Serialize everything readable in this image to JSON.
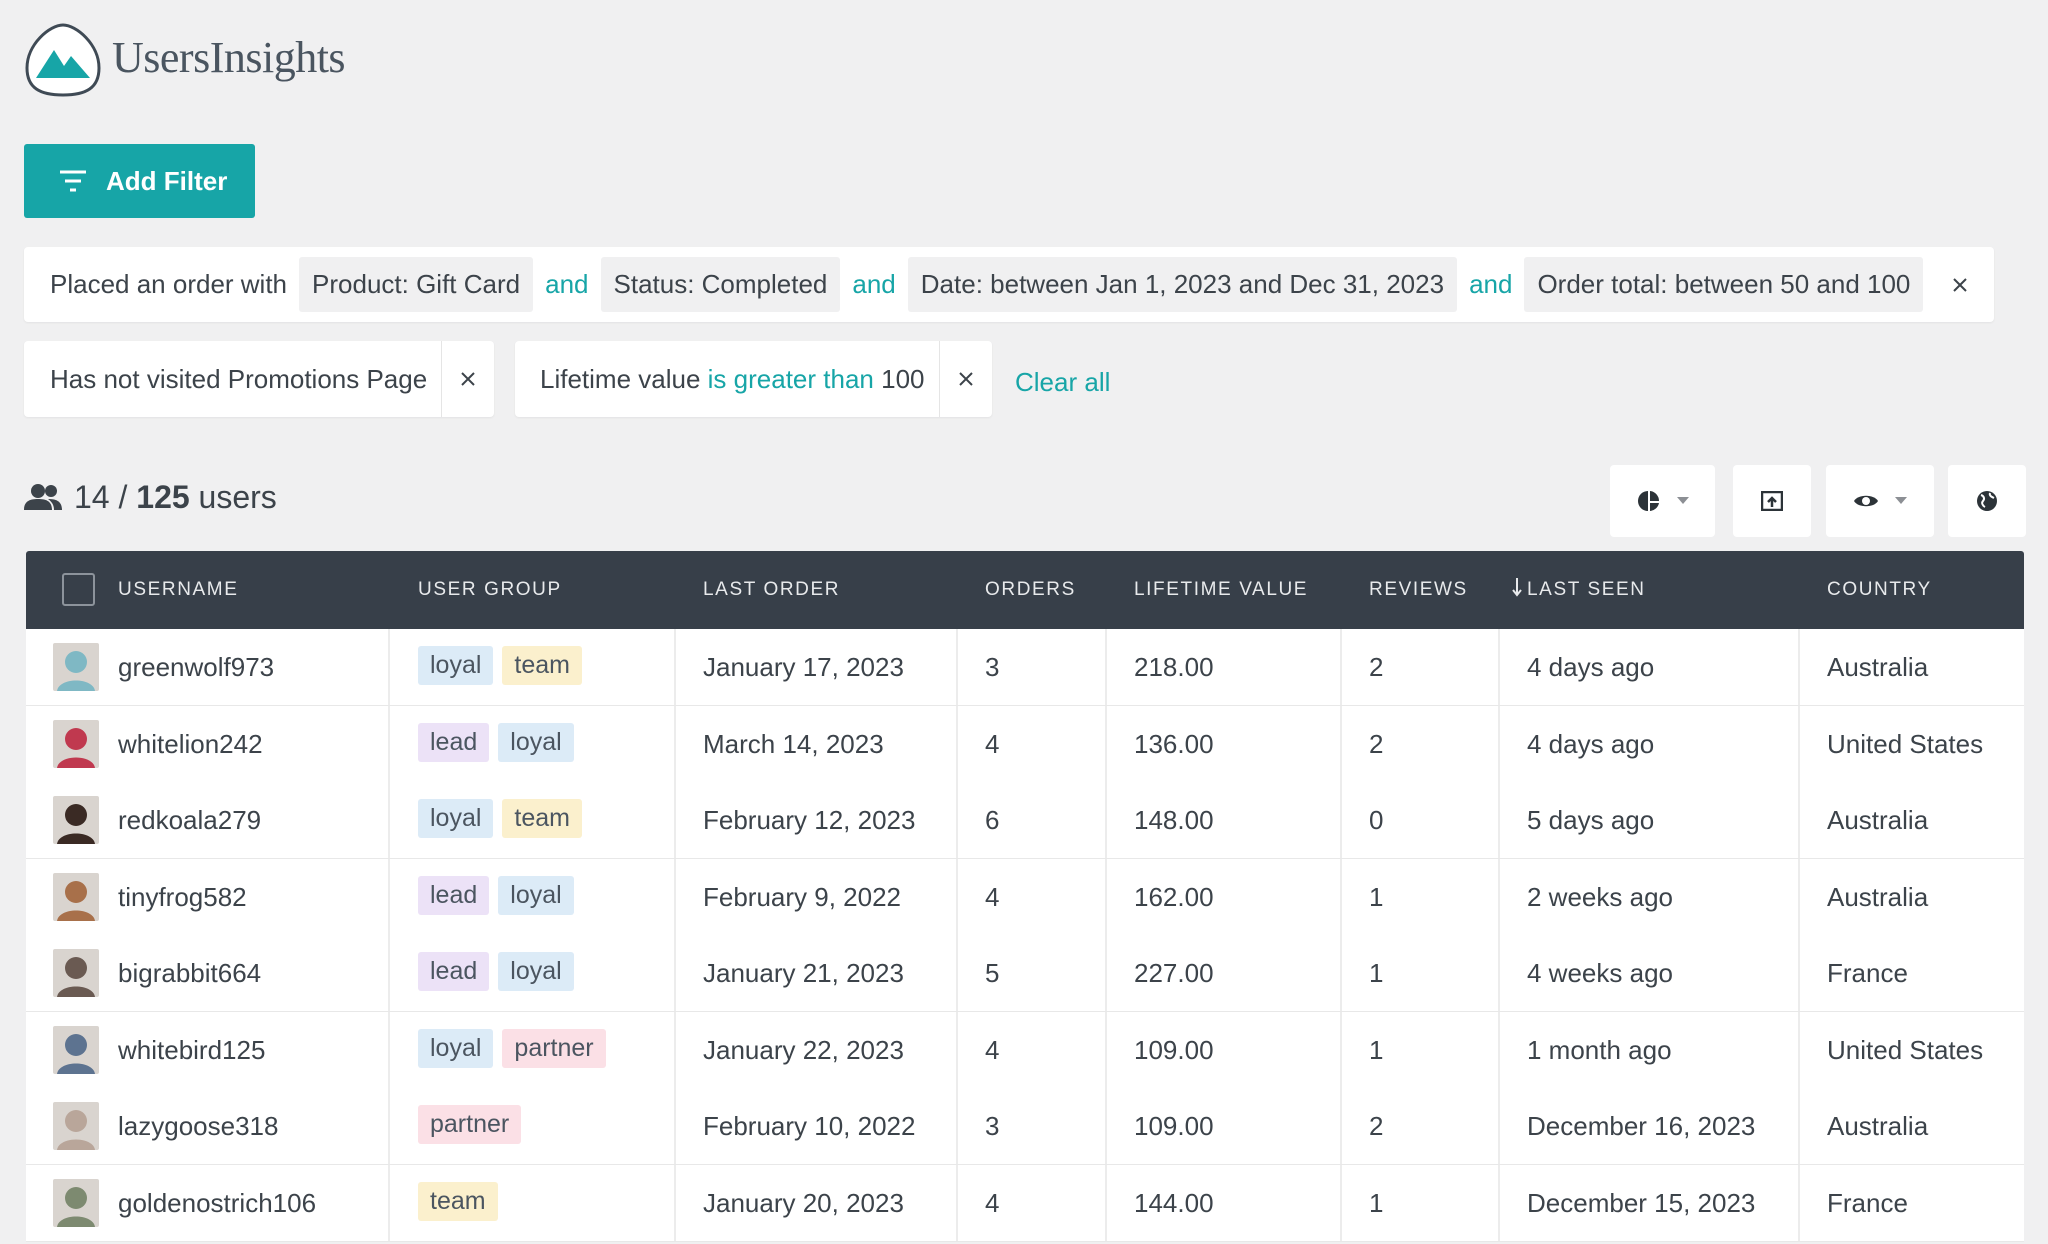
{
  "header": {
    "logo": "UsersInsights"
  },
  "add_filter": "Add Filter",
  "filters": {
    "order_filter": {
      "label": "Placed an order with",
      "joiner": "and",
      "conditions": [
        "Product: Gift Card",
        "Status: Completed",
        "Date: between Jan 1, 2023 and Dec 31, 2023",
        "Order total: between 50 and 100"
      ]
    },
    "visit_filter": {
      "label": "Has not visited Promotions Page"
    },
    "value_filter": {
      "field": "Lifetime value",
      "operator": "is greater than",
      "value": 100
    },
    "clear_all": "Clear all"
  },
  "summary": {
    "count": 14,
    "separator": "/",
    "total": 125,
    "unit": "users"
  },
  "table": {
    "columns": [
      "USERNAME",
      "USER GROUP",
      "LAST ORDER",
      "ORDERS",
      "LIFETIME VALUE",
      "REVIEWS",
      "LAST SEEN",
      "COUNTRY"
    ],
    "tag_colors": {
      "loyal": "#dcebf7",
      "team": "#fbf0cd",
      "lead": "#ece2f7",
      "partner": "#fbe0e6"
    },
    "rows": [
      {
        "username": "greenwolf973",
        "groups": [
          "loyal",
          "team"
        ],
        "last_order": "January 17, 2023",
        "orders": 3,
        "lifetime_value": "218.00",
        "reviews": 2,
        "last_seen": "4 days ago",
        "country": "Australia"
      },
      {
        "username": "whitelion242",
        "groups": [
          "lead",
          "loyal"
        ],
        "last_order": "March 14, 2023",
        "orders": 4,
        "lifetime_value": "136.00",
        "reviews": 2,
        "last_seen": "4 days ago",
        "country": "United States"
      },
      {
        "username": "redkoala279",
        "groups": [
          "loyal",
          "team"
        ],
        "last_order": "February 12, 2023",
        "orders": 6,
        "lifetime_value": "148.00",
        "reviews": 0,
        "last_seen": "5 days ago",
        "country": "Australia"
      },
      {
        "username": "tinyfrog582",
        "groups": [
          "lead",
          "loyal"
        ],
        "last_order": "February 9, 2022",
        "orders": 4,
        "lifetime_value": "162.00",
        "reviews": 1,
        "last_seen": "2 weeks ago",
        "country": "Australia"
      },
      {
        "username": "bigrabbit664",
        "groups": [
          "lead",
          "loyal"
        ],
        "last_order": "January 21, 2023",
        "orders": 5,
        "lifetime_value": "227.00",
        "reviews": 1,
        "last_seen": "4 weeks ago",
        "country": "France"
      },
      {
        "username": "whitebird125",
        "groups": [
          "loyal",
          "partner"
        ],
        "last_order": "January 22, 2023",
        "orders": 4,
        "lifetime_value": "109.00",
        "reviews": 1,
        "last_seen": "1 month ago",
        "country": "United States"
      },
      {
        "username": "lazygoose318",
        "groups": [
          "partner"
        ],
        "last_order": "February 10, 2022",
        "orders": 3,
        "lifetime_value": "109.00",
        "reviews": 2,
        "last_seen": "December 16, 2023",
        "country": "Australia"
      },
      {
        "username": "goldenostrich106",
        "groups": [
          "team"
        ],
        "last_order": "January 20, 2023",
        "orders": 4,
        "lifetime_value": "144.00",
        "reviews": 1,
        "last_seen": "December 15, 2023",
        "country": "France"
      }
    ]
  }
}
